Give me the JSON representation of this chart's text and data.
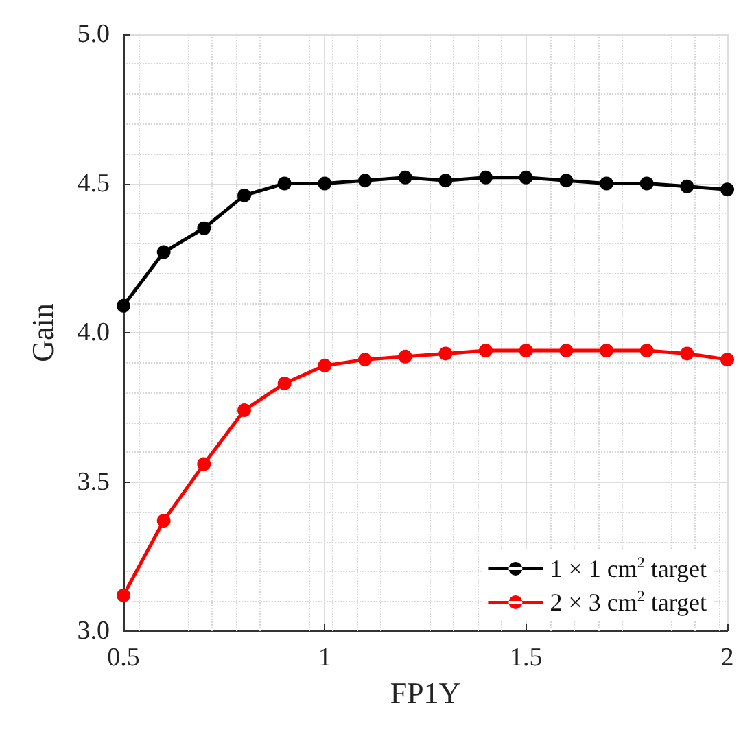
{
  "chart_data": {
    "type": "line",
    "xlabel": "FP1Y",
    "ylabel": "Gain",
    "x": [
      0.5,
      0.6,
      0.7,
      0.8,
      0.9,
      1.0,
      1.1,
      1.2,
      1.3,
      1.4,
      1.5,
      1.6,
      1.7,
      1.8,
      1.9,
      2.0
    ],
    "series": [
      {
        "name": "1 × 1 cm$^{2}$ target",
        "color": "#000000",
        "values": [
          4.09,
          4.27,
          4.35,
          4.46,
          4.5,
          4.5,
          4.51,
          4.52,
          4.51,
          4.52,
          4.52,
          4.51,
          4.5,
          4.5,
          4.49,
          4.48
        ]
      },
      {
        "name": "2 × 3 cm$^{2}$ target",
        "color": "#ff0000",
        "values": [
          3.12,
          3.37,
          3.56,
          3.74,
          3.83,
          3.89,
          3.91,
          3.92,
          3.93,
          3.94,
          3.94,
          3.94,
          3.94,
          3.94,
          3.93,
          3.91
        ]
      }
    ],
    "xlim": [
      0.5,
      2
    ],
    "xticks": [
      0.5,
      1,
      1.5,
      2
    ],
    "ylim": [
      3,
      5
    ],
    "yticks": [
      {
        "value": 3,
        "label": "3.0"
      },
      3.5,
      {
        "value": 4,
        "label": "4.0"
      },
      4.5,
      {
        "value": 5,
        "label": "5.0"
      }
    ],
    "grid": true,
    "legend": "bottom right",
    "marker": "circle",
    "line_style": "solid"
  }
}
